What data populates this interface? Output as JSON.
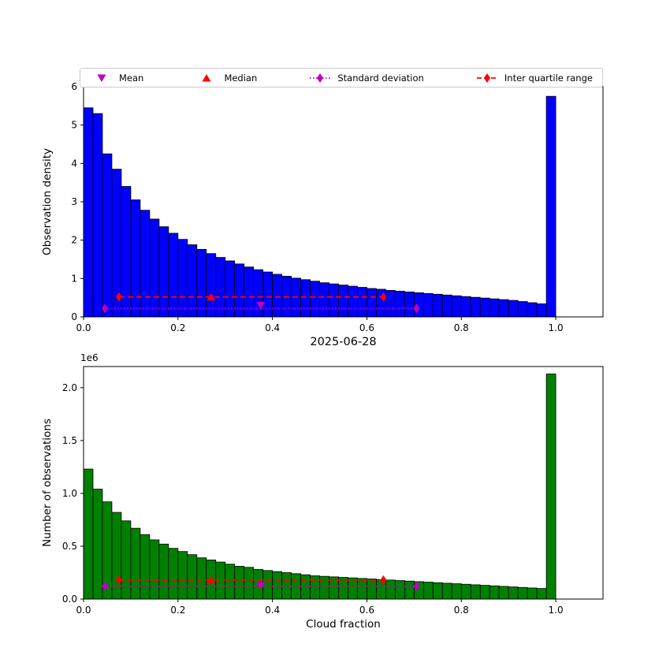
{
  "colors": {
    "mean": "#bf00bf",
    "median": "#ff0000",
    "std": "#bf00bf",
    "iqr": "#ff0000",
    "density_bars": "#0000ff",
    "count_bars": "#008000"
  },
  "legend": {
    "items": [
      {
        "label": "Mean",
        "marker": "triangle-down",
        "color": "#bf00bf"
      },
      {
        "label": "Median",
        "marker": "triangle-up",
        "color": "#ff0000"
      },
      {
        "label": "Standard deviation",
        "marker": "diamond-dotted",
        "color": "#bf00bf"
      },
      {
        "label": "Inter quartile range",
        "marker": "diamond-dashed",
        "color": "#ff0000"
      }
    ]
  },
  "chart_data": [
    {
      "type": "bar",
      "name": "observation-density-histogram",
      "title": "",
      "xlabel": "2025-06-28",
      "ylabel": "Observation density",
      "bar_color": "#0000ff",
      "xlim": [
        0,
        1.1
      ],
      "ylim": [
        0,
        6
      ],
      "xticks": [
        0.0,
        0.2,
        0.4,
        0.6,
        0.8,
        1.0
      ],
      "xtick_labels": [
        "0.0",
        "0.2",
        "0.4",
        "0.6",
        "0.8",
        "1.0"
      ],
      "yticks": [
        0,
        1,
        2,
        3,
        4,
        5,
        6
      ],
      "ytick_labels": [
        "0",
        "1",
        "2",
        "3",
        "4",
        "5",
        "6"
      ],
      "bin_start": 0,
      "bin_width": 0.02,
      "values": [
        5.45,
        5.3,
        4.25,
        3.85,
        3.4,
        3.05,
        2.78,
        2.55,
        2.35,
        2.18,
        2.02,
        1.88,
        1.76,
        1.65,
        1.55,
        1.46,
        1.38,
        1.3,
        1.23,
        1.17,
        1.11,
        1.06,
        1.01,
        0.97,
        0.93,
        0.89,
        0.86,
        0.83,
        0.8,
        0.77,
        0.74,
        0.72,
        0.69,
        0.67,
        0.65,
        0.63,
        0.61,
        0.59,
        0.57,
        0.55,
        0.53,
        0.51,
        0.49,
        0.47,
        0.45,
        0.43,
        0.4,
        0.37,
        0.34,
        5.75
      ],
      "markers": {
        "mean": {
          "x": 0.375,
          "y": 0.3
        },
        "median": {
          "x": 0.27,
          "y": 0.52
        },
        "std": {
          "x1": 0.045,
          "x2": 0.705,
          "y": 0.22
        },
        "iqr": {
          "x1": 0.075,
          "x2": 0.635,
          "y": 0.52
        }
      }
    },
    {
      "type": "bar",
      "name": "observation-count-histogram",
      "title": "",
      "xlabel": "Cloud fraction",
      "ylabel": "Number of observations",
      "offset_text": "1e6",
      "bar_color": "#008000",
      "xlim": [
        0,
        1.1
      ],
      "ylim": [
        0,
        2.2
      ],
      "xticks": [
        0.0,
        0.2,
        0.4,
        0.6,
        0.8,
        1.0
      ],
      "xtick_labels": [
        "0.0",
        "0.2",
        "0.4",
        "0.6",
        "0.8",
        "1.0"
      ],
      "yticks": [
        0,
        0.5,
        1.0,
        1.5,
        2.0
      ],
      "ytick_labels": [
        "0.0",
        "0.5",
        "1.0",
        "1.5",
        "2.0"
      ],
      "bin_start": 0,
      "bin_width": 0.02,
      "values": [
        1.23,
        1.04,
        0.92,
        0.82,
        0.74,
        0.67,
        0.61,
        0.56,
        0.52,
        0.48,
        0.45,
        0.42,
        0.39,
        0.37,
        0.35,
        0.33,
        0.31,
        0.3,
        0.28,
        0.27,
        0.26,
        0.25,
        0.24,
        0.23,
        0.22,
        0.215,
        0.21,
        0.205,
        0.2,
        0.195,
        0.19,
        0.185,
        0.18,
        0.175,
        0.17,
        0.165,
        0.16,
        0.155,
        0.15,
        0.145,
        0.14,
        0.135,
        0.13,
        0.125,
        0.12,
        0.115,
        0.11,
        0.105,
        0.1,
        2.13
      ],
      "markers": {
        "mean": {
          "x": 0.375,
          "y": 0.13
        },
        "median": {
          "x": 0.27,
          "y": 0.18
        },
        "std": {
          "x1": 0.045,
          "x2": 0.705,
          "y": 0.12
        },
        "iqr": {
          "x1": 0.075,
          "x2": 0.635,
          "y": 0.18
        }
      }
    }
  ]
}
